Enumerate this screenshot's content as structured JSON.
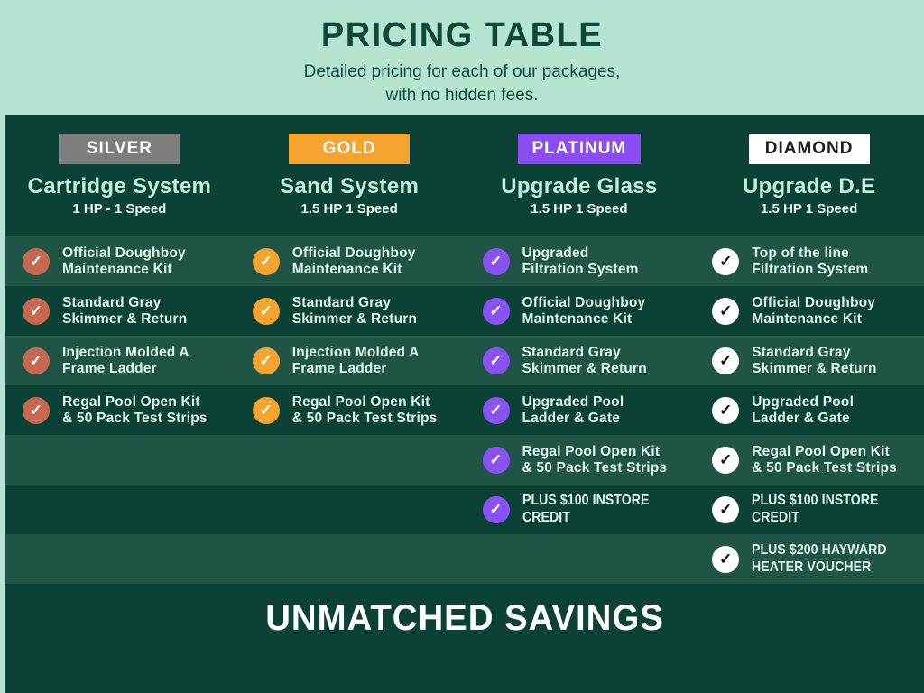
{
  "header": {
    "title": "PRICING TABLE",
    "subtitle_line1": "Detailed pricing for each of our packages,",
    "subtitle_line2": "with no hidden fees."
  },
  "footer": {
    "banner": "UNMATCHED SAVINGS"
  },
  "colors": {
    "mint_background": "#b5e4d1",
    "panel_dark_green": "#0c4136",
    "row_light_green": "#205447",
    "silver_badge": "#7d7d7d",
    "gold_badge": "#f5a52f",
    "platinum_badge": "#8a4ef0",
    "diamond_badge": "#ffffff",
    "silver_check": "#c76952",
    "gold_check": "#f5a52f",
    "platinum_check": "#8a52f2",
    "diamond_check": "#ffffff",
    "title_text": "#bff0dc",
    "heading_text": "#0e4839"
  },
  "columns": [
    {
      "badge": "SILVER",
      "title": "Cartridge System",
      "subtitle": "1 HP - 1 Speed",
      "check_icon": "check-circle-icon",
      "features": [
        {
          "line1": "Official Doughboy",
          "line2": "Maintenance Kit"
        },
        {
          "line1": "Standard Gray",
          "line2": "Skimmer & Return"
        },
        {
          "line1": "Injection Molded A",
          "line2": "Frame Ladder"
        },
        {
          "line1": "Regal Pool Open Kit",
          "line2": "& 50 Pack Test Strips"
        }
      ]
    },
    {
      "badge": "GOLD",
      "title": "Sand System",
      "subtitle": "1.5 HP 1 Speed",
      "check_icon": "check-circle-icon",
      "features": [
        {
          "line1": "Official Doughboy",
          "line2": "Maintenance Kit"
        },
        {
          "line1": "Standard Gray",
          "line2": "Skimmer & Return"
        },
        {
          "line1": "Injection Molded A",
          "line2": "Frame Ladder"
        },
        {
          "line1": "Regal Pool Open Kit",
          "line2": "& 50 Pack Test Strips"
        }
      ]
    },
    {
      "badge": "PLATINUM",
      "title": "Upgrade Glass",
      "subtitle": "1.5 HP 1 Speed",
      "check_icon": "check-circle-icon",
      "features": [
        {
          "line1": "Upgraded",
          "line2": "Filtration System"
        },
        {
          "line1": "Official Doughboy",
          "line2": "Maintenance Kit"
        },
        {
          "line1": "Standard Gray",
          "line2": "Skimmer & Return"
        },
        {
          "line1": "Upgraded Pool",
          "line2": "Ladder & Gate"
        },
        {
          "line1": "Regal Pool Open Kit",
          "line2": "& 50 Pack Test Strips"
        },
        {
          "line1": "PLUS $100 INSTORE",
          "line2": "CREDIT"
        }
      ]
    },
    {
      "badge": "DIAMOND",
      "title": "Upgrade D.E",
      "subtitle": "1.5 HP 1 Speed",
      "check_icon": "check-circle-icon",
      "features": [
        {
          "line1": "Top of the line",
          "line2": "Filtration System"
        },
        {
          "line1": "Official Doughboy",
          "line2": "Maintenance Kit"
        },
        {
          "line1": "Standard Gray",
          "line2": "Skimmer & Return"
        },
        {
          "line1": "Upgraded Pool",
          "line2": "Ladder & Gate"
        },
        {
          "line1": "Regal Pool Open Kit",
          "line2": "& 50 Pack Test Strips"
        },
        {
          "line1": "PLUS $100 INSTORE",
          "line2": "CREDIT"
        },
        {
          "line1": "PLUS $200 HAYWARD",
          "line2": "HEATER VOUCHER"
        }
      ]
    }
  ]
}
